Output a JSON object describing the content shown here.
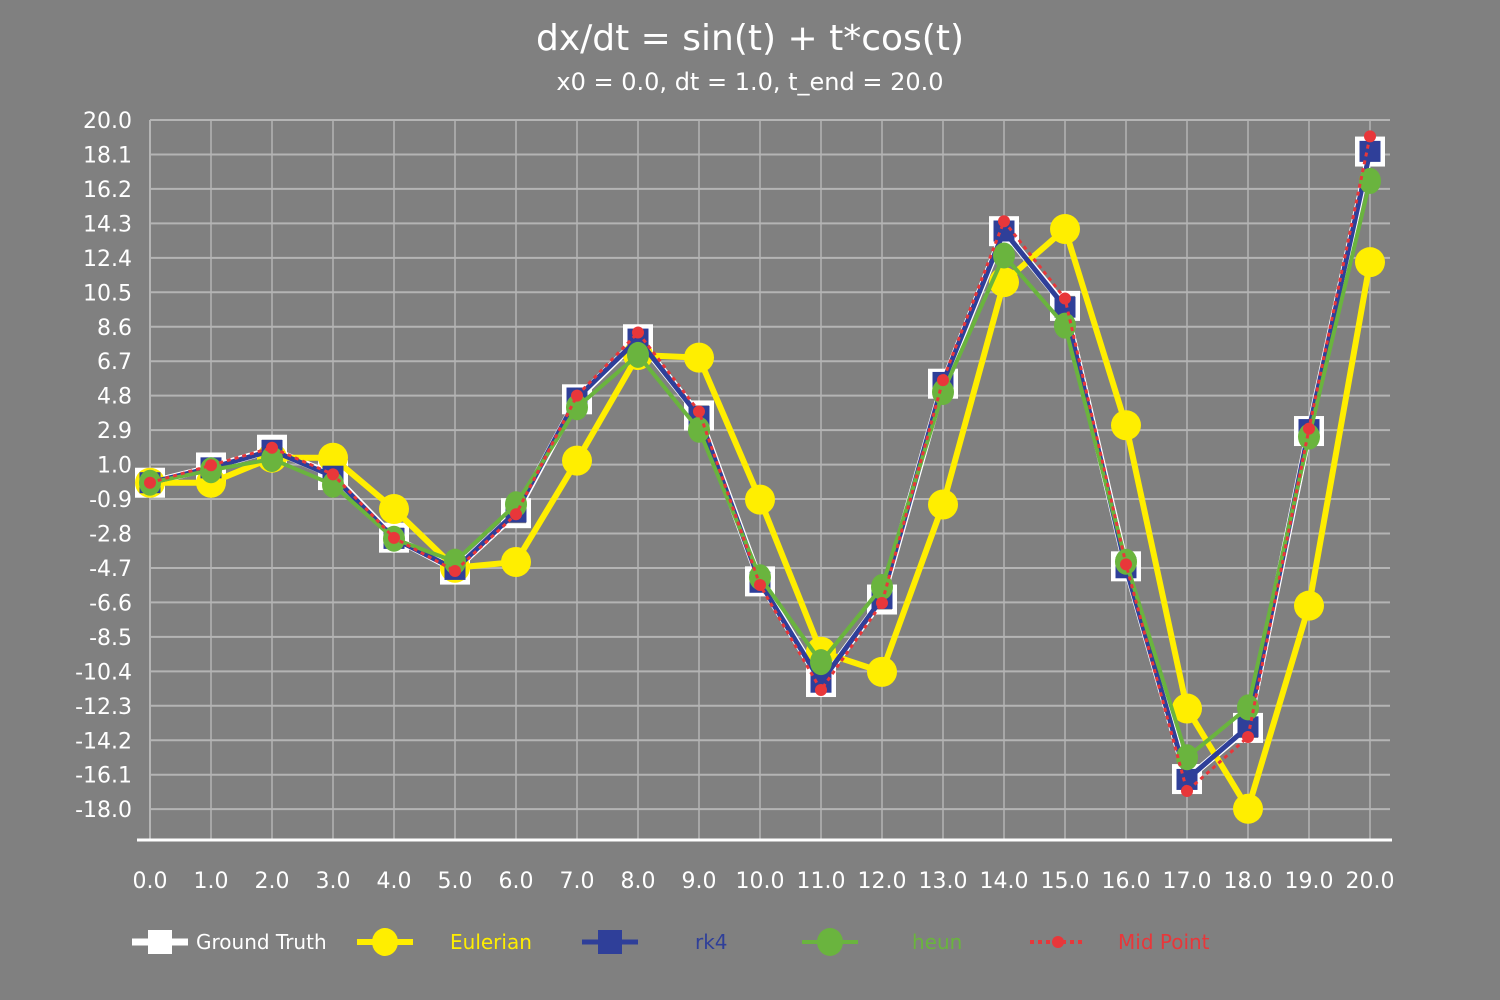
{
  "chart_data": {
    "type": "line",
    "title": "dx/dt = sin(t) + t*cos(t)",
    "subtitle": "x0 = 0.0, dt = 1.0, t_end = 20.0",
    "xlabel": "",
    "ylabel": "",
    "x": [
      0,
      1,
      2,
      3,
      4,
      5,
      6,
      7,
      8,
      9,
      10,
      11,
      12,
      13,
      14,
      15,
      16,
      17,
      18,
      19,
      20
    ],
    "x_tick_labels": [
      "0.0",
      "1.0",
      "2.0",
      "3.0",
      "4.0",
      "5.0",
      "6.0",
      "7.0",
      "8.0",
      "9.0",
      "10.0",
      "11.0",
      "12.0",
      "13.0",
      "14.0",
      "15.0",
      "16.0",
      "17.0",
      "18.0",
      "19.0",
      "20.0"
    ],
    "y_tick_labels": [
      "20.0",
      "18.1",
      "16.2",
      "14.3",
      "12.4",
      "10.5",
      "8.6",
      "6.7",
      "4.8",
      "2.9",
      "1.0",
      "-0.9",
      "-2.8",
      "-4.7",
      "-6.6",
      "-8.5",
      "-10.4",
      "-12.3",
      "-14.2",
      "-16.1",
      "-18.0"
    ],
    "y_ticks": [
      20.0,
      18.1,
      16.2,
      14.3,
      12.4,
      10.5,
      8.6,
      6.7,
      4.8,
      2.9,
      1.0,
      -0.9,
      -2.8,
      -4.7,
      -6.6,
      -8.5,
      -10.4,
      -12.3,
      -14.2,
      -16.1,
      -18.0
    ],
    "ylim": [
      -19.7,
      20.0
    ],
    "xlim": [
      0,
      20
    ],
    "grid": true,
    "legend_position": "bottom",
    "series": [
      {
        "name": "Ground Truth",
        "color": "#ffffff",
        "marker": "square",
        "values": [
          0.0,
          0.84,
          1.82,
          0.42,
          -3.03,
          -4.79,
          -1.68,
          4.6,
          7.91,
          3.71,
          -5.44,
          -10.99,
          -6.44,
          5.46,
          13.87,
          9.75,
          -4.61,
          -16.34,
          -13.52,
          2.85,
          18.26
        ]
      },
      {
        "name": "Eulerian",
        "color": "#ffee00",
        "marker": "circle",
        "values": [
          0.0,
          0.0,
          1.38,
          1.38,
          -1.45,
          -4.69,
          -4.37,
          1.22,
          7.04,
          6.9,
          -0.93,
          -9.32,
          -10.43,
          -1.2,
          11.06,
          13.99,
          3.17,
          -12.45,
          -17.98,
          -6.78,
          12.16
        ]
      },
      {
        "name": "rk4",
        "color": "#2f3f99",
        "marker": "square",
        "values": [
          0.0,
          0.82,
          1.78,
          0.36,
          -3.07,
          -4.78,
          -1.61,
          4.67,
          7.92,
          3.66,
          -5.49,
          -11.0,
          -6.38,
          5.53,
          13.88,
          9.68,
          -4.69,
          -16.36,
          -13.46,
          2.93,
          18.27
        ]
      },
      {
        "name": "heun",
        "color": "#6ab43e",
        "marker": "circle",
        "values": [
          0.0,
          0.69,
          1.31,
          -0.11,
          -3.09,
          -4.35,
          -1.19,
          4.16,
          7.05,
          2.92,
          -5.21,
          -9.89,
          -5.75,
          5.0,
          12.53,
          8.66,
          -4.36,
          -15.14,
          -12.39,
          2.54,
          16.64
        ]
      },
      {
        "name": "Mid Point",
        "color": "#e8373a",
        "marker": "dot",
        "dashed": true,
        "values": [
          0.0,
          0.96,
          1.93,
          0.46,
          -3.04,
          -4.87,
          -1.74,
          4.8,
          8.28,
          3.93,
          -5.64,
          -11.43,
          -6.63,
          5.66,
          14.42,
          10.16,
          -4.5,
          -17.0,
          -14.02,
          2.98,
          19.1
        ]
      }
    ]
  }
}
